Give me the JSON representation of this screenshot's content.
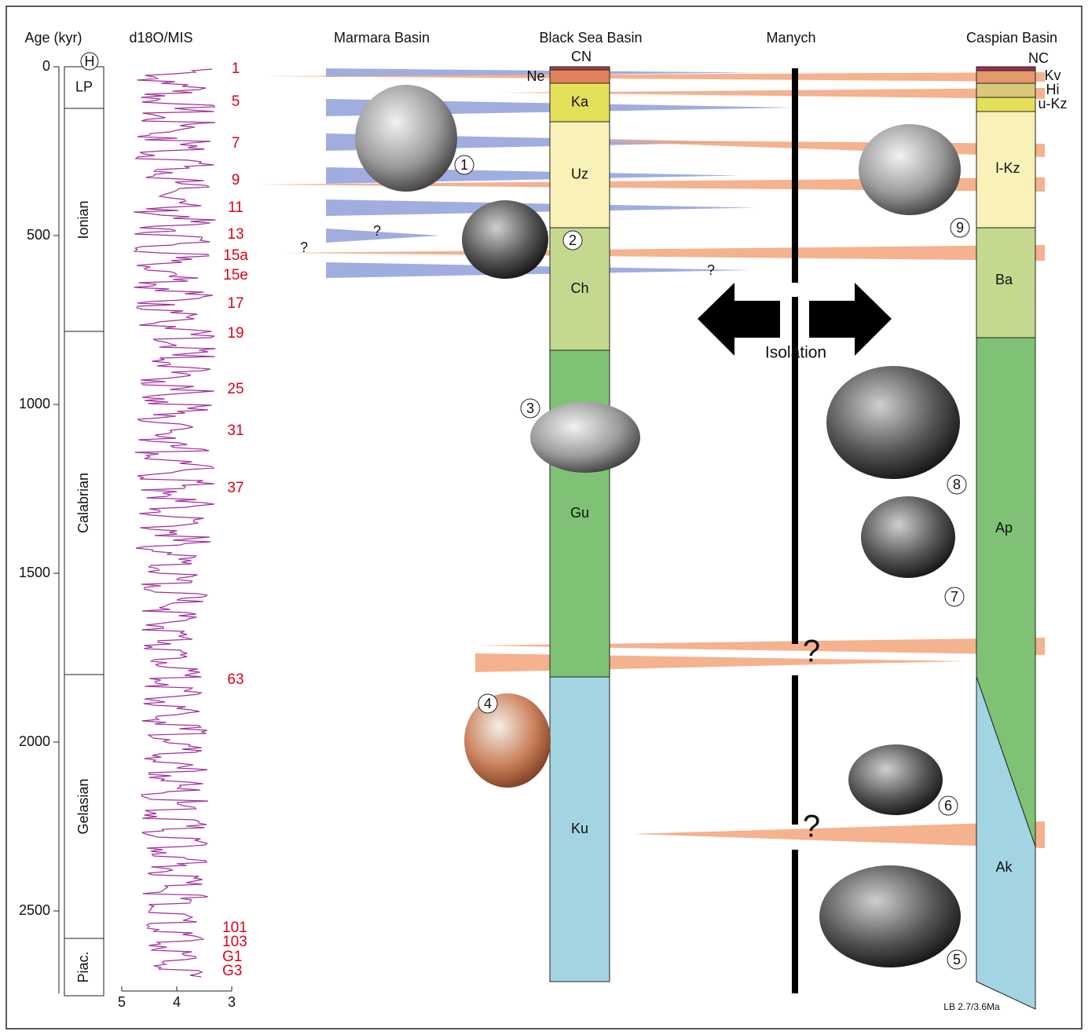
{
  "headers": {
    "age": "Age (kyr)",
    "d18o": "d18O/MIS",
    "marmara": "Marmara Basin",
    "black_sea": "Black Sea Basin",
    "manych": "Manych",
    "caspian": "Caspian Basin"
  },
  "age_ticks": [
    "0",
    "500",
    "1000",
    "1500",
    "2000",
    "2500"
  ],
  "stages": [
    "H",
    "LP",
    "Ionian",
    "Calabrian",
    "Gelasian",
    "Piac."
  ],
  "d18o_ticks": [
    "5",
    "4",
    "3"
  ],
  "mis": [
    "1",
    "5",
    "7",
    "9",
    "11",
    "13",
    "15a",
    "15e",
    "17",
    "19",
    "25",
    "31",
    "37",
    "63",
    "101",
    "103",
    "G1",
    "G3"
  ],
  "black_sea_units": [
    "CN",
    "Ne",
    "Ka",
    "Uz",
    "Ch",
    "Gu",
    "Ku"
  ],
  "caspian_units": [
    "NC",
    "Kv",
    "Hi",
    "u-Kz",
    "l-Kz",
    "Ba",
    "Ap",
    "Ak"
  ],
  "isolation": "Isolation",
  "question": "?",
  "shell_numbers": [
    "1",
    "2",
    "3",
    "4",
    "5",
    "6",
    "7",
    "8",
    "9"
  ],
  "footer": "LB 2.7/3.6Ma"
}
